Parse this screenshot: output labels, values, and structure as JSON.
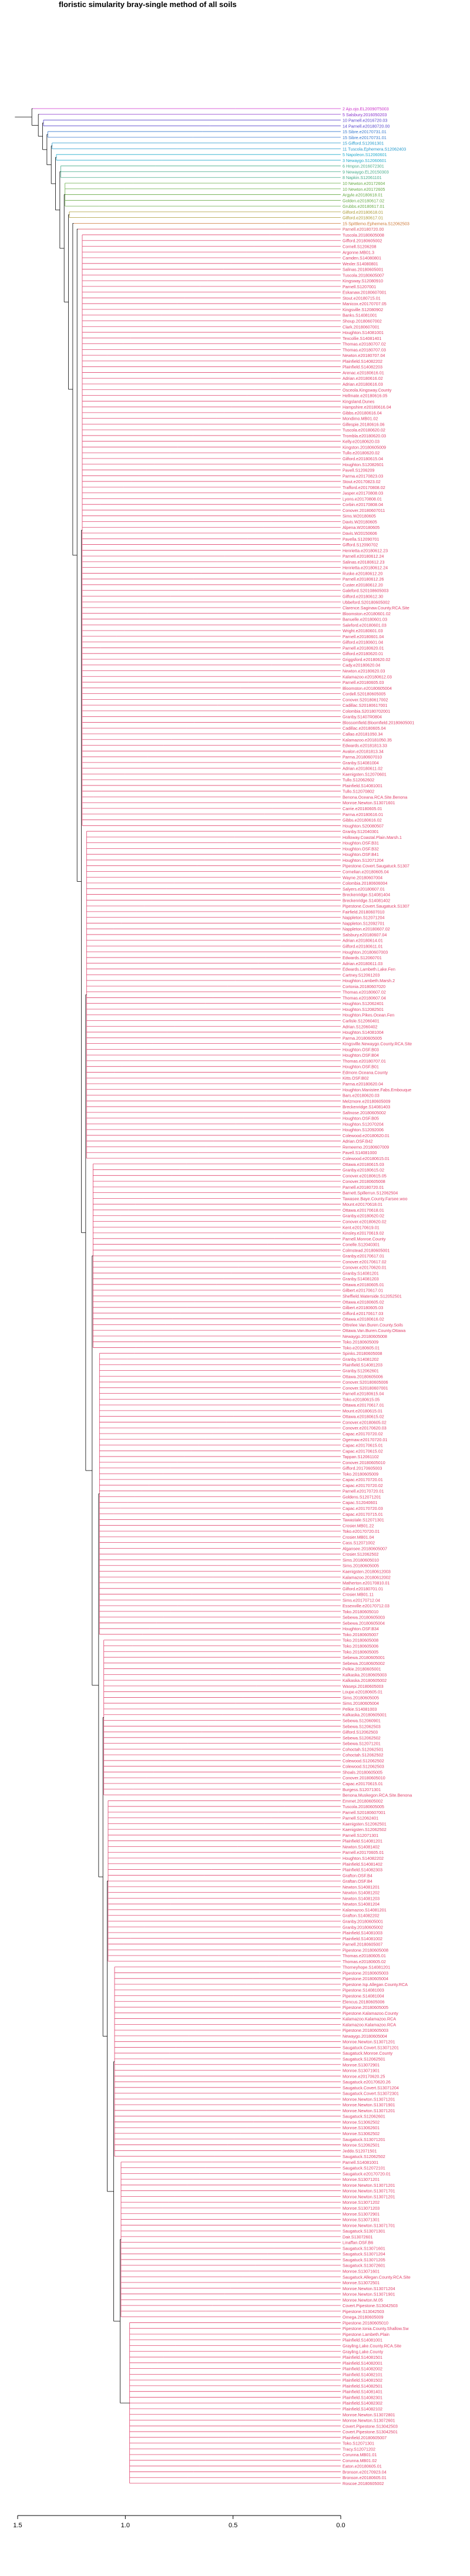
{
  "chart_data": {
    "type": "dendrogram",
    "title": "floristic simularity bray-single  method of all soils",
    "orientation": "horizontal",
    "xlim": [
      1.5,
      0.0
    ],
    "x_ticks": [
      "1.5",
      "1.0",
      "0.5",
      "0.0"
    ],
    "x_tick_values": [
      1.5,
      1.0,
      0.5,
      0.0
    ],
    "outgroup_height": 1.48,
    "groups": [
      {
        "color": "#CC33CC",
        "height": 1.43,
        "leaves": [
          "2 Ajo.ojo.EL20090T5003"
        ]
      },
      {
        "color": "#8833CC",
        "height": 1.4,
        "leaves": [
          "5 Salsbury.2016050203"
        ]
      },
      {
        "color": "#5544CC",
        "height": 1.38,
        "leaves": [
          "10 Parnell.e2016720.03",
          "14 Parnell.e20180720.00"
        ]
      },
      {
        "color": "#3377CC",
        "height": 1.36,
        "leaves": [
          "15 Sibre.e20170731.01",
          "15 Sibre.e20170731.01"
        ]
      },
      {
        "color": "#2299CC",
        "height": 1.34,
        "leaves": [
          "15 Gifford.S12061301",
          "11 Tuscola.Ephemera.S12062403"
        ]
      },
      {
        "color": "#22AACC",
        "height": 1.32,
        "leaves": [
          "5 Napoleon.S12060601",
          "3 Newaygo.S12060601"
        ]
      },
      {
        "color": "#44AA88",
        "height": 1.3,
        "leaves": [
          "6 Hmpsn.2016072301",
          "9 Newaygo.EL20150303",
          "8 Napkin.S12061101"
        ]
      },
      {
        "color": "#66AA44",
        "height": 1.28,
        "leaves": [
          "10 Newton.e20172604",
          "10 Newton.e20172605",
          "Argyle.e20180618.01",
          "Golden.e20180617.02",
          "Grubbs.e20180617.01"
        ]
      },
      {
        "color": "#AA9933",
        "height": 1.26,
        "leaves": [
          "Gilford.e20180618.01",
          "Gilford.e20180617.01"
        ]
      },
      {
        "color": "#CC7733",
        "height": 1.24,
        "leaves": [
          "15 Spittlemo.Ephemera.S12062503"
        ]
      },
      {
        "color": "#DD5566",
        "height": 1.22,
        "leaves": [
          "Parnell.e20180720.00"
        ]
      },
      {
        "color": "#E0406A",
        "height": 1.2,
        "leaves": [
          "Tuscola.20180605008",
          "Gifford.20180605002",
          "Cornell.S1206208",
          "Argonne.MB01.3",
          "Camden.S14080801",
          "Wexler.S14080801",
          "Salinas.20180605001",
          "Tuscola.20180605007",
          "Kingsway.S12080910",
          "Parnell.S1207001",
          "Eskanaw.20180607001",
          "Stout.e20180715.01",
          "Manicox.e20170707.05",
          "Kingsville.S12080902",
          "Banks.S14081001",
          "Shoup.20180607002",
          "Clark.20180607001",
          "Houghton.S14081001",
          "Texcollie.S14081401",
          "Thomas.e20180707.02",
          "Thomas.e20180707.03",
          "Newton.e20180707.04",
          "Plainfield.S14082202",
          "Plainfield.S14082203",
          "Arenac.e20180616.01",
          "Adrian.e20180616.02",
          "Adrian.e20180616.03",
          "Osceola.Kingsway.County",
          "Hellmate.e20180616.05",
          "Kingsland.Dunes",
          "Hampshire.e20180616.04",
          "Gibbs.e20180616.04",
          "Mondimo.MB01.02",
          "Gillespie.20180616.06",
          "Tuscola.e20180620.02",
          "Trombla.e20180620.03",
          "Kelly.e20180620.03",
          "Kingston.20180605009",
          "Tullo.e20180620.02",
          "Gilford.e20180615.04",
          "Houghton.S12082601",
          "Pavell.S1206209",
          "Parma.e20170823.03",
          "Stout.e20170823.02",
          "Trafford.e20170808.02",
          "Jasper.e20170808.03",
          "Lyons.e20170808.01",
          "Corbin.e20170808.04",
          "Conover.20180607011",
          "Sims.W20180605",
          "Davis.W20180605",
          "Alpena.W20180605",
          "Davis.W20150606",
          "Pavella.S12090701",
          "Gifford.S12090702",
          "Henrietta.e20180612.23",
          "Parnell.e20180612.24",
          "Salinas.e20180612.23",
          "Henrietta.e20180612.24",
          "Ruske.e20180612.20",
          "Parnell.e20180612.26",
          "Custer.e20180612.20",
          "Galeford.S20108605003",
          "Gilford.e20180612.30",
          "Ubbeford.S20180605002",
          "Clarence.Saginaw.County.RCA.Site",
          "Bloomston.e20180601.02",
          "Banuelle.e20180601.03",
          "Saleford.e20180601.03",
          "Wright.e20180601.03",
          "Parnell.e20180601.04",
          "Gilford.e20180601.04",
          "Parnell.e20180620.01",
          "Gilford.e20180620.01",
          "Griggsford.e20180620.02",
          "Cady.e20180620.04",
          "Newton.e20180620.03",
          "Kalamazoo.e20180612.03",
          "Parnell.e20180605.03",
          "Bloomston.e20180605004",
          "Cordell.S20180605005",
          "Conover.S20180617002",
          "Cadillac.S20180617001",
          "Colombia.S20180702001",
          "Granby.S1407R0804",
          "Blossomfield.Bloomfield.20180605001",
          "Cadillac.e20180605.04",
          "Callao.e20181050.34",
          "Kalamazoo.e20181050.35",
          "Edwards.e20181813.33",
          "Avalon.e20181813.34",
          "Parma.20180607010",
          "Granby.S14081004",
          "Adrian.e20180611.02",
          "Kaenigsten.S12070601",
          "Tullo.S12062602",
          "Plainfield.S14081001",
          "Tullo.S12070802",
          "Benona.Oceana.RCA.Site.Benona",
          "Monroe.Newton.S13071601",
          "Carrie.e20180605.01",
          "Parma.e20180616.01",
          "Gibbs.e20180616.02",
          "Houghton.S20080507"
        ]
      },
      {
        "color": "#E0406A",
        "height": 1.18,
        "leaves": [
          "Granby.S12040301",
          "Holloway.Coastal.Plain.Marsh.1",
          "Houghton.OSF.B31",
          "Houghton.OSF.B32",
          "Houghton.OSF.B41",
          "Houghton.S12071204",
          "Pipestone.Covert.Saugatuck.S1307",
          "Cornelian.e20180605.04",
          "Wayne.20180607004",
          "Colombia.20180606004",
          "Salyers.e20180607.01",
          "Breckenridge.S14081404",
          "Breckenridge.S14081402",
          "Pipestone.Covert.Saugatuck.S1307",
          "Fairfield.20180607010",
          "Nappleton.S12071204",
          "Nappleton.S12092701",
          "Nappleton.e20180607.02",
          "Salsbury.e20180607.04",
          "Adrian.e20180614.01",
          "Gilford.e20180611.01",
          "Houghton.20180607003",
          "Edwards.S12060701",
          "Adrian.e20180611.03",
          "Edwards.Lambeth.Lake.Fen",
          "Cartney.S12061203",
          "Houghton.Lambeth.Marsh.2",
          "Cortonia.20180607020",
          "Thomas.e20180607.02",
          "Thomas.e20180607.04",
          "Houghton.S12062401",
          "Houghton.S12082501",
          "Houghton.Pikes.Ocean.Fen",
          "Carlisle.S12060401",
          "Adrian.S12060402",
          "Houghton.S14081004",
          "Parma.20180605005",
          "Kingsville.Newaygo.County.RCA.Site",
          "Houghton.OSF.B03",
          "Houghton.OSF.B04",
          "Thomas.e20180707.01",
          "Houghton.OSF.B01",
          "Edmore.Oceana.County",
          "Kitts.OSF.B02",
          "Parma.e20180620.04",
          "Houghton.Manistee.Fabs.Embouque",
          "Bars.e20180620.03",
          "Melzmore.e20180605009",
          "Breckenridge.S14081403",
          "Saltnose.20180605002",
          "Houghton.OSF.B05",
          "Houghton.S12070204",
          "Houghton.S12092006",
          "Colewood.e20180620.01",
          "Adrian.OSF.B42",
          "Remeemo.20180607009",
          "Pavell.S14081000",
          "Colewood.e20180615.01"
        ]
      },
      {
        "color": "#E0406A",
        "height": 1.15,
        "leaves": [
          "Ottawa.e20180615.03",
          "Granby.e20180615.02",
          "Conover.e20180615.05",
          "Conover.20180605008",
          "Parnell.e20180720.01",
          "Barnett.Spillerrun.S12062504",
          "Tawasee.Baye.County.Farsee.woo",
          "Mount.e20170618.01",
          "Ottawa.e20170618.01",
          "Granby.e20180620.02",
          "Conover.e20180620.02",
          "Kent.e20170619.01",
          "Kinsley.e20170619.02",
          "Parnell.Monroe.County",
          "Conelle.S12040301",
          "Colmstead.20180605001",
          "Granby.e20170617.01",
          "Conover.e20170617.02",
          "Conover.e20170620.01",
          "Granby.S14081201",
          "Granby.S14081203",
          "Ottawa.e20180605.01",
          "Gilbert.e20170617.01",
          "Sheffield.Waterside.S12052501",
          "Ottawa.e20180605.02",
          "Gilbert.e20180605.03",
          "Gifford.e20170617.03",
          "Ottawa.e20180616.02",
          "Ottrelee.Van.Buren.County.Soils",
          "Ottawa.Van.Buren.County.Ottawa",
          "Newaygo.20180605008",
          "Toko.20180605009",
          "Toko.e20180605.01"
        ]
      },
      {
        "color": "#E0406A",
        "height": 1.12,
        "leaves": [
          "Spinks.20180605008",
          "Granby.S14081202",
          "Plainfield.S14081203",
          "Granby.S12062601",
          "Ottawa.20180605006",
          "Conover.S20180605006",
          "Conover.S20180607001",
          "Parnell.e20180615.04",
          "Toko.e20180615.05",
          "Ottawa.e20170617.01",
          "Mount.e20180615.01",
          "Ottawa.e20180615.02",
          "Conover.e20180605.02",
          "Conover.e20170620.03",
          "Capac.e20170720.02",
          "Ogemaw.e20170720.01",
          "Capac.e20170615.01",
          "Capac.e20170615.02",
          "Tappan.S12061102",
          "Conover.20180605010",
          "Gifford.20170605003",
          "Toko.20180605009",
          "Capac.e20170720.01",
          "Capac.e20170720.02",
          "Parnell.e20170720.01",
          "Goldens.S12071201",
          "Capac.S12040601",
          "Capac.e20170720.03",
          "Capac.e20170715.01",
          "Tawastale.S12071301",
          "Crosier.MB01.22",
          "Toko.e20170720.01",
          "Crosier.MB01.04",
          "Cass.S12071002",
          "Algansee.20180605007",
          "Crosier.S12062502",
          "Sims.20180605010",
          "Sims.20180605005",
          "Kaenigsten.20180612003",
          "Kalamazoo.20180612002",
          "Matherton.e20170810.01",
          "Gilford.e20180701.01",
          "Crosier.MB01.11",
          "Sims.e20170712.04",
          "Essexville.e20170712.03",
          "Toko.20180605010",
          "Sebewa.20180605003",
          "Sebewa.20180605004",
          "Houghton.OSF.B34",
          "Toko.20180605007"
        ]
      },
      {
        "color": "#E0406A",
        "height": 1.1,
        "leaves": [
          "Toko.20180605008",
          "Toko.20180605006",
          "Toko.20180605005",
          "Sebewa.20180605001",
          "Sebewa.20180605002",
          "Pelkie.20180605001",
          "Kalkaska.20180605003",
          "Kalkaska.20180605002",
          "Wasepi.20180605003",
          "Loupe.e20180605.01",
          "Sims.20180605005",
          "Sims.20180605004",
          "Pelkie.S14081003",
          "Kalkaska.20180605001",
          "Sebewa.S12060901",
          "Sebewa.S12062503",
          "Gilford.S12062503",
          "Sebewa.S12062502",
          "Sebewa.S12071201",
          "Cohoctah.S12062501",
          "Cohoctah.S12062502",
          "Colewood.S12062502",
          "Colewood.S12062503",
          "Shoals.20180605005",
          "Conover.20180605010",
          "Capac.e20170615.01",
          "Burgess.S12071301",
          "Benona.Muskegon.RCA.Site.Benona"
        ]
      },
      {
        "color": "#E0406A",
        "height": 1.08,
        "leaves": [
          "Emmet.20180605002",
          "Tuscola.20180605005",
          "Parnell.S20180607001",
          "Parnell.S12062401",
          "Kaenigsten.S12062501",
          "Kaenigsten.S12062502",
          "Parnell.S12071301",
          "Plainfield.S14081201",
          "Newton.S14081402",
          "Parnell.e20170605.01",
          "Houghton.S14082202",
          "Plainfield.S14081402",
          "Plainfield.S14082303",
          "Grafton.OSF.B4",
          "Graftan.OSF.B4",
          "Newton.S14081201",
          "Newton.S14081202",
          "Newton.S14081203",
          "Newton.S14081204",
          "Kalamazoo.S14081201",
          "Grafton.S14082202",
          "Granby.20180605001",
          "Granby.20180605002",
          "Plainfield.S14081003",
          "Plainfield.S14081002",
          "Parnell.20180605007",
          "Pipestone.20180605008",
          "Thomas.e20180605.01",
          "Thomas.e20180605.02"
        ]
      },
      {
        "color": "#E0406A",
        "height": 1.05,
        "leaves": [
          "Thorneyhope.S14081201",
          "Pipestone.20180605003",
          "Pipestone.20180605004",
          "Pipestone.Isp.Allegan.County.RCA",
          "Pipestone.S14081003",
          "Pipestone.S14081004",
          "Elencus.20180605006",
          "Pipestone.20180605005",
          "Pipestone.Kalamazoo.County",
          "Kalamazoo.Kalamazoo.RCA",
          "Kalamazoo.Kalamazoo.RCA",
          "Pipestone.20180605003",
          "Newaygo.20180605004",
          "Monroe.Newton.S13071201",
          "Saugatuck.Covert.S13071201",
          "Saugatuck.Monroe.County",
          "Saugatuck.S12062501",
          "Monroe.S13072901",
          "Monroe.S13071901",
          "Monroe.e20170620.25",
          "Saugatuck.e20170620.26",
          "Saugatuck.Covert.S13071204",
          "Saugatuck.Covert.S13072301",
          "Monroe.Newton.S13071201",
          "Monroe.Newton.S13071901",
          "Monroe.Newton.S13071201",
          "Saugatuck.S12062601",
          "Monroe.S13062502",
          "Monroe.S13062601",
          "Monroe.S13062502",
          "Saugatuck.S13071201",
          "Monroe.S12062501",
          "Jeddo.S12071501",
          "Saugatuck.S12062502"
        ]
      },
      {
        "color": "#E0406A",
        "height": 1.02,
        "leaves": [
          "Parnell.S14081001",
          "Saugatuck.S12072101",
          "Saugatuck.e20170720.01",
          "Monroe.S13071201",
          "Monroe.Newton.S13071201",
          "Monroe.Newton.S13071701",
          "Monroe.Newton.S13071201",
          "Monroe.S13071202",
          "Monroe.S13071203",
          "Monroe.S13072901",
          "Monroe.S13071301",
          "Monroe.Newton.S13071701",
          "Saugatuck.S13071301",
          "Dair.S13072601",
          "Linaffan.OSF.B6",
          "Saugatuck.S13071601",
          "Saugatuck.S13071204",
          "Saugatuck.S13071205",
          "Saugatuck.S13072601",
          "Monroe.S13071601",
          "Saugatuck.Allegan.County.RCA.Site",
          "Monroe.S13072501",
          "Monroe.Newton.S13071204",
          "Monroe.Newton.S13071901",
          "Monroe.Newton.M.05",
          "Covert.Pipestone.S13042503",
          "Pipestone.S13042503",
          "Omega.20180605009"
        ]
      },
      {
        "color": "#E0406A",
        "height": 0.98,
        "leaves": [
          "Pipestone.20180605010",
          "Pipestone.Ionia.County.Shallow.Sw",
          "Pipestone.Lambeth.Plain",
          "Plainfield.S14081001",
          "Grayling.Lake.County.RCA.Site",
          "Grayling.Lake.County",
          "Plainfield.S14081501",
          "Plainfield.S14082001",
          "Plainfield.S14082002",
          "Plainfield.S14082101",
          "Plainfield.S14081502",
          "Plainfield.S14082501",
          "Plainfield.S14081401",
          "Plainfield.S14082301",
          "Plainfield.S14082302",
          "Plainfield.S14082102",
          "Monroe.Newton.S13072801",
          "Monroe.Newton.S13072601",
          "Covert.Pipestone.S13042503",
          "Covert.Pipestone.S13042501",
          "Plainfield.20180605007",
          "Toko.S12071301",
          "Tracy.S12071202",
          "Corunna.MB01.01",
          "Corunna.MB01.02",
          "Eaton.e20180605.01",
          "Bronson.e20170923.04",
          "Bronson.e20180605.01",
          "Roscoe.20180605002"
        ]
      }
    ]
  }
}
